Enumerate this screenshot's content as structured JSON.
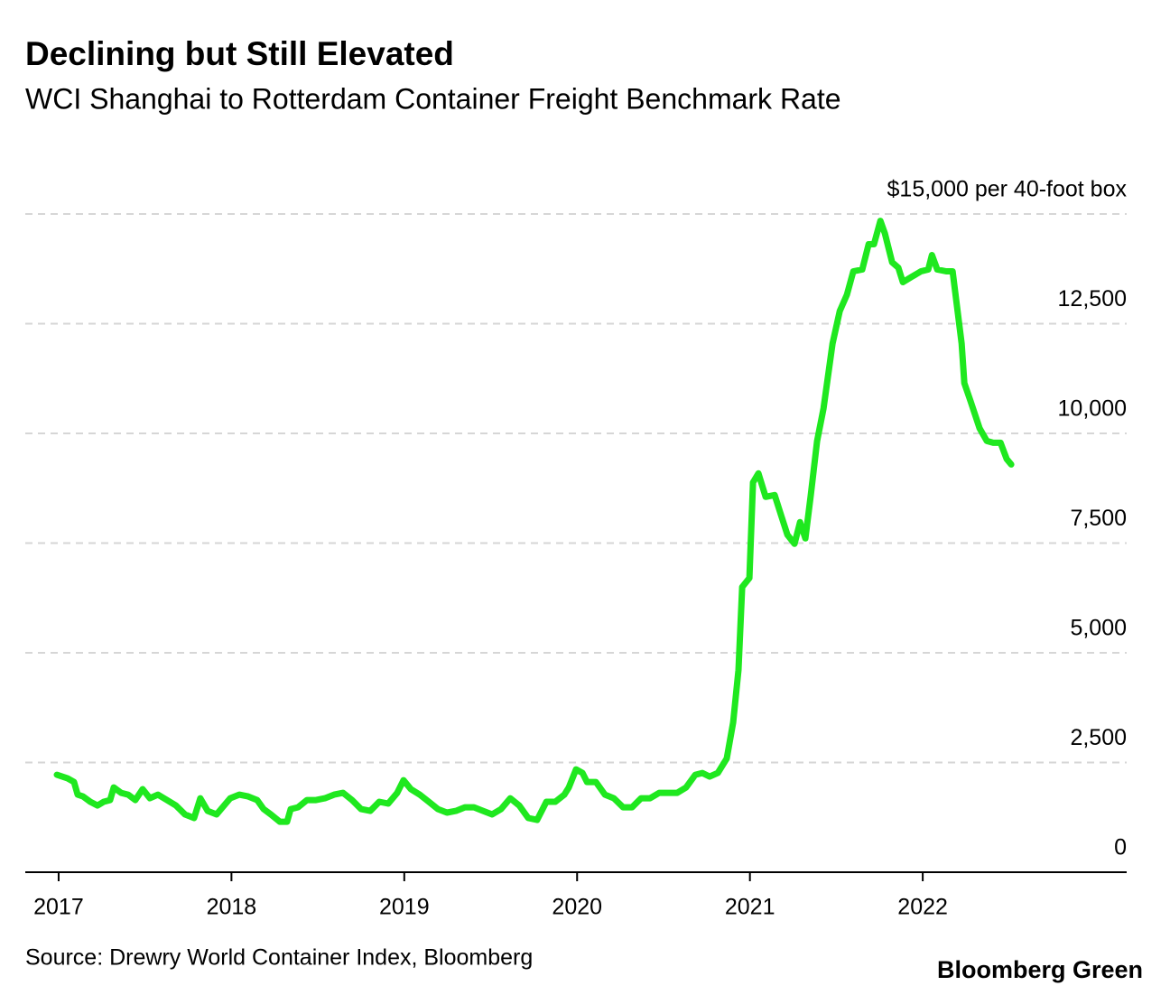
{
  "chart_data": {
    "type": "line",
    "title": "Declining but Still Elevated",
    "subtitle": "WCI Shanghai to Rotterdam Container Freight Benchmark Rate",
    "source": "Source: Drewry World Container Index, Bloomberg",
    "brand": "Bloomberg Green",
    "xlim": [
      2016.807,
      2023.18
    ],
    "xticks": [
      2017,
      2018,
      2019,
      2020,
      2021,
      2022
    ],
    "ylim": [
      0,
      15000
    ],
    "yticks": [
      0,
      {
        "value": 2500,
        "label": "2,500"
      },
      {
        "value": 5000,
        "label": "5,000"
      },
      {
        "value": 7500,
        "label": "7,500"
      },
      {
        "value": 10000,
        "label": "10,000"
      },
      {
        "value": 12500,
        "label": "12,500"
      },
      {
        "value": 15000,
        "label": "$15,000 per 40-foot box"
      }
    ],
    "grid": true,
    "x": [
      2016.99,
      2017.052,
      2017.089,
      2017.11,
      2017.141,
      2017.183,
      2017.225,
      2017.261,
      2017.298,
      2017.319,
      2017.361,
      2017.402,
      2017.444,
      2017.486,
      2017.528,
      2017.575,
      2017.627,
      2017.679,
      2017.731,
      2017.784,
      2017.82,
      2017.862,
      2017.914,
      2017.993,
      2018.045,
      2018.097,
      2018.149,
      2018.186,
      2018.228,
      2018.28,
      2018.322,
      2018.343,
      2018.385,
      2018.437,
      2018.489,
      2018.541,
      2018.594,
      2018.646,
      2018.698,
      2018.75,
      2018.803,
      2018.855,
      2018.907,
      2018.959,
      2018.996,
      2019.038,
      2019.09,
      2019.142,
      2019.195,
      2019.247,
      2019.299,
      2019.351,
      2019.403,
      2019.456,
      2019.508,
      2019.56,
      2019.613,
      2019.665,
      2019.717,
      2019.769,
      2019.822,
      2019.874,
      2019.926,
      2019.952,
      2019.994,
      2020.031,
      2020.057,
      2020.109,
      2020.161,
      2020.213,
      2020.266,
      2020.318,
      2020.37,
      2020.422,
      2020.475,
      2020.527,
      2020.579,
      2020.631,
      2020.684,
      2020.725,
      2020.767,
      2020.814,
      2020.866,
      2020.903,
      2020.934,
      2020.955,
      2020.997,
      2021.018,
      2021.049,
      2021.091,
      2021.143,
      2021.18,
      2021.217,
      2021.258,
      2021.29,
      2021.321,
      2021.352,
      2021.389,
      2021.426,
      2021.478,
      2021.52,
      2021.561,
      2021.598,
      2021.65,
      2021.687,
      2021.718,
      2021.755,
      2021.781,
      2021.823,
      2021.859,
      2021.885,
      2021.937,
      2021.99,
      2022.032,
      2022.053,
      2022.084,
      2022.136,
      2022.173,
      2022.199,
      2022.225,
      2022.241,
      2022.277,
      2022.329,
      2022.371,
      2022.408,
      2022.45,
      2022.486,
      2022.512
    ],
    "series": [
      {
        "name": "WCI Shanghai to Rotterdam",
        "color": "#1fe81f",
        "values": [
          2220,
          2138,
          2056,
          1768,
          1727,
          1604,
          1521,
          1604,
          1645,
          1933,
          1809,
          1768,
          1645,
          1892,
          1686,
          1768,
          1645,
          1521,
          1316,
          1234,
          1686,
          1398,
          1316,
          1686,
          1768,
          1727,
          1645,
          1439,
          1316,
          1151,
          1151,
          1439,
          1480,
          1645,
          1645,
          1686,
          1768,
          1809,
          1645,
          1439,
          1398,
          1604,
          1563,
          1809,
          2097,
          1892,
          1768,
          1604,
          1439,
          1357,
          1398,
          1480,
          1480,
          1398,
          1316,
          1439,
          1686,
          1521,
          1234,
          1192,
          1604,
          1604,
          1768,
          1933,
          2344,
          2262,
          2056,
          2056,
          1768,
          1686,
          1480,
          1480,
          1686,
          1686,
          1809,
          1809,
          1809,
          1933,
          2220,
          2262,
          2179,
          2262,
          2591,
          3413,
          4605,
          6497,
          6703,
          8882,
          9088,
          8553,
          8594,
          8142,
          7689,
          7484,
          7977,
          7607,
          8594,
          9828,
          10568,
          12048,
          12788,
          13158,
          13693,
          13734,
          14310,
          14310,
          14844,
          14556,
          13899,
          13775,
          13446,
          13570,
          13693,
          13734,
          14063,
          13734,
          13693,
          13693,
          12871,
          12048,
          11144,
          10732,
          10116,
          9828,
          9787,
          9787,
          9416,
          9293
        ]
      }
    ]
  }
}
